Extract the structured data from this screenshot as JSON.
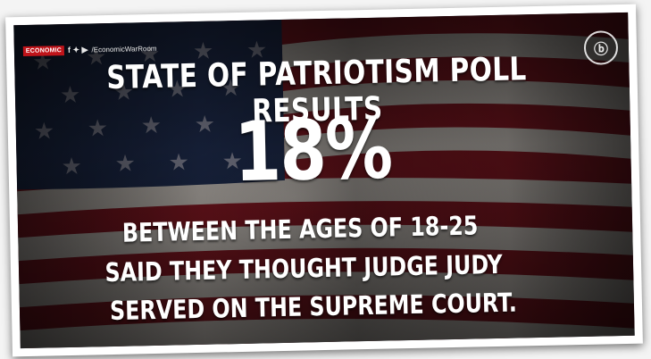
{
  "brand": {
    "logo_text": "ECONOMIC",
    "social_text": "f ✦ ▶",
    "handle": "/EconomicWarRoom",
    "logo_icon": "bb-circle-logo"
  },
  "poll": {
    "headline": "STATE OF PATRIOTISM POLL RESULTS",
    "percent": "18%",
    "lines": [
      "BETWEEN THE AGES OF 18-25",
      "SAID THEY THOUGHT JUDGE JUDY",
      "SERVED ON THE SUPREME COURT."
    ]
  },
  "colors": {
    "flag_red": "#7a1620",
    "flag_white": "#b9b3ad",
    "flag_blue": "#1d2a4a",
    "text": "#ffffff"
  }
}
